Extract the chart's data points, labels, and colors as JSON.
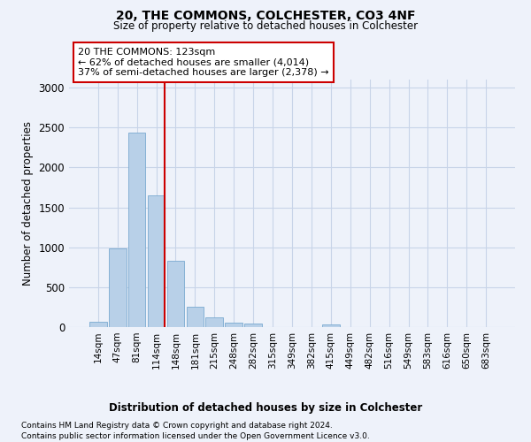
{
  "title": "20, THE COMMONS, COLCHESTER, CO3 4NF",
  "subtitle": "Size of property relative to detached houses in Colchester",
  "xlabel": "Distribution of detached houses by size in Colchester",
  "ylabel": "Number of detached properties",
  "categories": [
    "14sqm",
    "47sqm",
    "81sqm",
    "114sqm",
    "148sqm",
    "181sqm",
    "215sqm",
    "248sqm",
    "282sqm",
    "315sqm",
    "349sqm",
    "382sqm",
    "415sqm",
    "449sqm",
    "482sqm",
    "516sqm",
    "549sqm",
    "583sqm",
    "616sqm",
    "650sqm",
    "683sqm"
  ],
  "values": [
    70,
    990,
    2440,
    1650,
    830,
    260,
    120,
    55,
    45,
    0,
    0,
    0,
    30,
    0,
    0,
    0,
    0,
    0,
    0,
    0,
    0
  ],
  "bar_color": "#b8d0e8",
  "bar_edgecolor": "#7aaad0",
  "highlight_index": 3,
  "highlight_line_color": "#cc0000",
  "annotation_line1": "20 THE COMMONS: 123sqm",
  "annotation_line2": "← 62% of detached houses are smaller (4,014)",
  "annotation_line3": "37% of semi-detached houses are larger (2,378) →",
  "annotation_box_color": "#ffffff",
  "annotation_box_edgecolor": "#cc0000",
  "ylim": [
    0,
    3100
  ],
  "yticks": [
    0,
    500,
    1000,
    1500,
    2000,
    2500,
    3000
  ],
  "grid_color": "#c8d4e8",
  "background_color": "#eef2fa",
  "footer1": "Contains HM Land Registry data © Crown copyright and database right 2024.",
  "footer2": "Contains public sector information licensed under the Open Government Licence v3.0."
}
